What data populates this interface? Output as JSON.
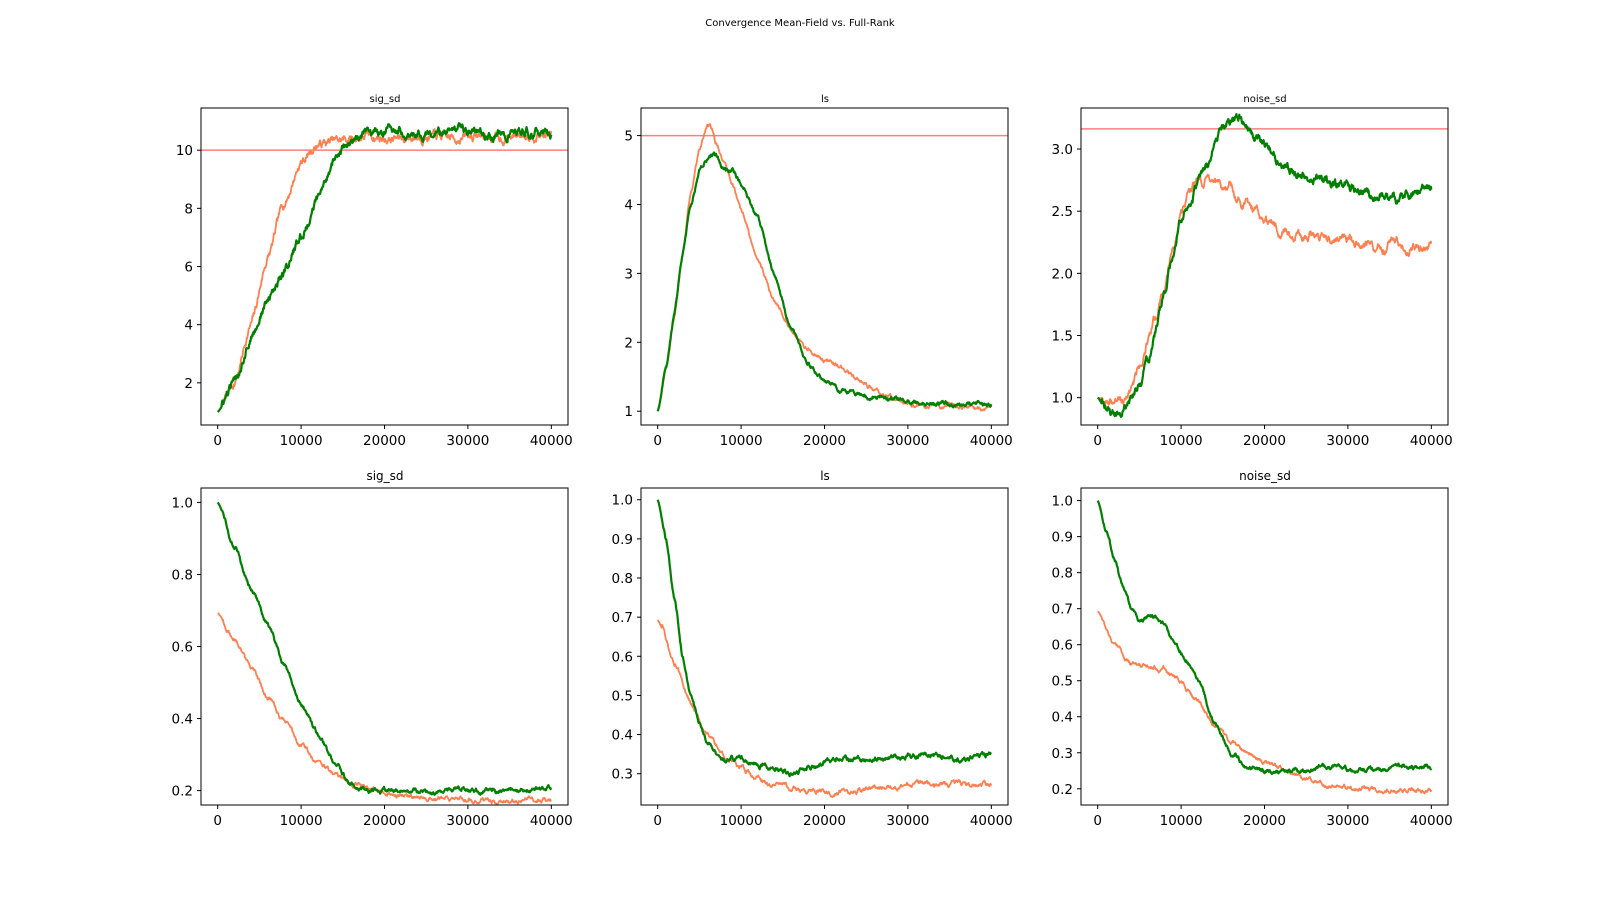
{
  "figure": {
    "title": "Convergence Mean-Field vs. Full-Rank"
  },
  "colors": {
    "mean_field": "#ff7f50",
    "full_rank": "#008000",
    "reference": "#ff7f7f"
  },
  "chart_data": [
    {
      "type": "line",
      "title": "sig_sd",
      "xlim": [
        -2000,
        42000
      ],
      "ylim": [
        0.55,
        11.45
      ],
      "xticks": [
        0,
        10000,
        20000,
        30000,
        40000
      ],
      "yticks": [
        2,
        4,
        6,
        8,
        10
      ],
      "xtick_labels": [
        "0",
        "10000",
        "20000",
        "30000",
        "40000"
      ],
      "ytick_labels": [
        "2",
        "4",
        "6",
        "8",
        "10"
      ],
      "reference_line": 10,
      "noise": 0.1,
      "series": [
        {
          "color": "#ff7f50",
          "x": [
            0,
            2000,
            4000,
            6000,
            8000,
            10000,
            12000,
            14000,
            16000,
            18000,
            20000,
            22000,
            25000,
            28000,
            31000,
            34000,
            37000,
            40000
          ],
          "y": [
            1.0,
            2.0,
            4.0,
            6.3,
            8.2,
            9.6,
            10.2,
            10.3,
            10.4,
            10.5,
            10.4,
            10.4,
            10.5,
            10.4,
            10.5,
            10.4,
            10.6,
            10.5
          ]
        },
        {
          "color": "#008000",
          "x": [
            0,
            2000,
            4000,
            6000,
            8000,
            10000,
            12000,
            14000,
            16000,
            18000,
            20000,
            22000,
            25000,
            28000,
            31000,
            34000,
            37000,
            40000
          ],
          "y": [
            1.0,
            2.0,
            3.6,
            4.8,
            5.9,
            7.0,
            8.3,
            9.7,
            10.3,
            10.5,
            10.7,
            10.7,
            10.6,
            10.6,
            10.6,
            10.5,
            10.6,
            10.6
          ]
        }
      ]
    },
    {
      "type": "line",
      "title": "ls",
      "xlim": [
        -2000,
        42000
      ],
      "ylim": [
        0.8,
        5.4
      ],
      "xticks": [
        0,
        10000,
        20000,
        30000,
        40000
      ],
      "yticks": [
        1,
        2,
        3,
        4,
        5
      ],
      "xtick_labels": [
        "0",
        "10000",
        "20000",
        "30000",
        "40000"
      ],
      "ytick_labels": [
        "1",
        "2",
        "3",
        "4",
        "5"
      ],
      "reference_line": 5,
      "noise": 0.02,
      "series": [
        {
          "color": "#ff7f50",
          "x": [
            0,
            1000,
            2000,
            3000,
            4000,
            5000,
            6000,
            6500,
            7000,
            8000,
            9000,
            10000,
            12000,
            14000,
            16000,
            18000,
            20000,
            22000,
            24000,
            27000,
            30000,
            33000,
            36000,
            40000
          ],
          "y": [
            1.0,
            1.6,
            2.4,
            3.3,
            4.2,
            4.8,
            5.15,
            5.1,
            4.9,
            4.6,
            4.3,
            3.9,
            3.2,
            2.6,
            2.2,
            1.9,
            1.75,
            1.65,
            1.45,
            1.25,
            1.12,
            1.08,
            1.07,
            1.05
          ]
        },
        {
          "color": "#008000",
          "x": [
            0,
            1000,
            2000,
            3000,
            4000,
            5000,
            6000,
            7000,
            8000,
            9000,
            10000,
            12000,
            14000,
            16000,
            18000,
            20000,
            22000,
            25000,
            28000,
            31000,
            34000,
            37000,
            40000
          ],
          "y": [
            1.0,
            1.6,
            2.4,
            3.3,
            4.0,
            4.5,
            4.65,
            4.7,
            4.5,
            4.5,
            4.3,
            3.8,
            3.0,
            2.2,
            1.7,
            1.45,
            1.3,
            1.2,
            1.17,
            1.12,
            1.1,
            1.1,
            1.1
          ]
        }
      ]
    },
    {
      "type": "line",
      "title": "noise_sd",
      "xlim": [
        -2000,
        42000
      ],
      "ylim": [
        0.78,
        3.33
      ],
      "xticks": [
        0,
        10000,
        20000,
        30000,
        40000
      ],
      "yticks": [
        1.0,
        1.5,
        2.0,
        2.5,
        3.0
      ],
      "xtick_labels": [
        "0",
        "10000",
        "20000",
        "30000",
        "40000"
      ],
      "ytick_labels": [
        "1.0",
        "1.5",
        "2.0",
        "2.5",
        "3.0"
      ],
      "reference_line": 3.162,
      "noise": 0.025,
      "series": [
        {
          "color": "#ff7f50",
          "x": [
            0,
            1000,
            2000,
            3000,
            4000,
            5000,
            6000,
            7000,
            8000,
            9000,
            10000,
            11000,
            12000,
            13000,
            14000,
            15000,
            16000,
            17000,
            18000,
            19000,
            20000,
            22000,
            24000,
            26000,
            28000,
            30000,
            32000,
            34000,
            35500,
            37000,
            38500,
            40000
          ],
          "y": [
            1.0,
            0.98,
            0.95,
            1.0,
            1.08,
            1.25,
            1.45,
            1.65,
            1.9,
            2.2,
            2.45,
            2.65,
            2.75,
            2.75,
            2.7,
            2.65,
            2.72,
            2.6,
            2.55,
            2.5,
            2.45,
            2.35,
            2.32,
            2.3,
            2.25,
            2.27,
            2.22,
            2.2,
            2.3,
            2.2,
            2.23,
            2.2
          ]
        },
        {
          "color": "#008000",
          "x": [
            0,
            1000,
            2000,
            3000,
            4000,
            5000,
            6000,
            7000,
            8000,
            9000,
            10000,
            11000,
            12000,
            13000,
            14000,
            15000,
            16000,
            17000,
            18000,
            19000,
            20000,
            21000,
            22000,
            24000,
            26000,
            28000,
            30000,
            32000,
            34000,
            36000,
            38000,
            40000
          ],
          "y": [
            1.0,
            0.9,
            0.87,
            0.9,
            0.98,
            1.1,
            1.3,
            1.55,
            1.85,
            2.15,
            2.45,
            2.55,
            2.7,
            2.85,
            3.05,
            3.15,
            3.2,
            3.25,
            3.15,
            3.1,
            3.05,
            2.98,
            2.9,
            2.8,
            2.75,
            2.72,
            2.7,
            2.65,
            2.62,
            2.6,
            2.65,
            2.68
          ]
        }
      ]
    },
    {
      "type": "line",
      "title": "sig_sd",
      "xlim": [
        -2000,
        42000
      ],
      "ylim": [
        0.16,
        1.04
      ],
      "xticks": [
        0,
        10000,
        20000,
        30000,
        40000
      ],
      "yticks": [
        0.2,
        0.4,
        0.6,
        0.8,
        1.0
      ],
      "xtick_labels": [
        "0",
        "10000",
        "20000",
        "30000",
        "40000"
      ],
      "ytick_labels": [
        "0.2",
        "0.4",
        "0.6",
        "0.8",
        "1.0"
      ],
      "reference_line": null,
      "noise": 0.004,
      "series": [
        {
          "color": "#ff7f50",
          "x": [
            0,
            2000,
            4000,
            6000,
            8000,
            10000,
            12000,
            14000,
            16000,
            18000,
            20000,
            22000,
            25000,
            28000,
            31000,
            34000,
            37000,
            40000
          ],
          "y": [
            0.693,
            0.62,
            0.54,
            0.46,
            0.39,
            0.33,
            0.28,
            0.245,
            0.22,
            0.205,
            0.195,
            0.187,
            0.18,
            0.176,
            0.175,
            0.173,
            0.174,
            0.173
          ]
        },
        {
          "color": "#008000",
          "x": [
            0,
            2000,
            4000,
            6000,
            8000,
            10000,
            12000,
            14000,
            16000,
            17000,
            18000,
            20000,
            22000,
            25000,
            28000,
            31000,
            34000,
            37000,
            40000
          ],
          "y": [
            1.0,
            0.88,
            0.76,
            0.66,
            0.55,
            0.44,
            0.36,
            0.28,
            0.22,
            0.205,
            0.2,
            0.2,
            0.205,
            0.195,
            0.2,
            0.2,
            0.198,
            0.2,
            0.205
          ]
        }
      ]
    },
    {
      "type": "line",
      "title": "ls",
      "xlim": [
        -2000,
        42000
      ],
      "ylim": [
        0.22,
        1.03
      ],
      "xticks": [
        0,
        10000,
        20000,
        30000,
        40000
      ],
      "yticks": [
        0.3,
        0.4,
        0.5,
        0.6,
        0.7,
        0.8,
        0.9,
        1.0
      ],
      "xtick_labels": [
        "0",
        "10000",
        "20000",
        "30000",
        "40000"
      ],
      "ytick_labels": [
        "0.3",
        "0.4",
        "0.5",
        "0.6",
        "0.7",
        "0.8",
        "0.9",
        "1.0"
      ],
      "reference_line": null,
      "noise": 0.004,
      "series": [
        {
          "color": "#ff7f50",
          "x": [
            0,
            2000,
            4000,
            6000,
            8000,
            10000,
            12000,
            14000,
            16000,
            18000,
            20000,
            22000,
            25000,
            28000,
            31000,
            34000,
            37000,
            40000
          ],
          "y": [
            0.693,
            0.58,
            0.48,
            0.4,
            0.345,
            0.315,
            0.29,
            0.272,
            0.262,
            0.257,
            0.255,
            0.254,
            0.26,
            0.27,
            0.275,
            0.273,
            0.272,
            0.274
          ]
        },
        {
          "color": "#008000",
          "x": [
            0,
            1000,
            2000,
            3000,
            4000,
            5000,
            6000,
            7000,
            8000,
            10000,
            12000,
            14000,
            16000,
            18000,
            20000,
            22000,
            25000,
            28000,
            31000,
            34000,
            37000,
            40000
          ],
          "y": [
            1.0,
            0.9,
            0.75,
            0.6,
            0.5,
            0.43,
            0.38,
            0.35,
            0.335,
            0.34,
            0.325,
            0.31,
            0.3,
            0.32,
            0.33,
            0.34,
            0.335,
            0.34,
            0.345,
            0.345,
            0.34,
            0.35
          ]
        }
      ]
    },
    {
      "type": "line",
      "title": "noise_sd",
      "xlim": [
        -2000,
        42000
      ],
      "ylim": [
        0.155,
        1.035
      ],
      "xticks": [
        0,
        10000,
        20000,
        30000,
        40000
      ],
      "yticks": [
        0.2,
        0.3,
        0.4,
        0.5,
        0.6,
        0.7,
        0.8,
        0.9,
        1.0
      ],
      "xtick_labels": [
        "0",
        "10000",
        "20000",
        "30000",
        "40000"
      ],
      "ytick_labels": [
        "0.2",
        "0.3",
        "0.4",
        "0.5",
        "0.6",
        "0.7",
        "0.8",
        "0.9",
        "1.0"
      ],
      "reference_line": null,
      "noise": 0.004,
      "series": [
        {
          "color": "#ff7f50",
          "x": [
            0,
            2000,
            4000,
            6000,
            8000,
            10000,
            12000,
            14000,
            16000,
            18000,
            20000,
            22000,
            25000,
            28000,
            31000,
            34000,
            37000,
            40000
          ],
          "y": [
            0.693,
            0.6,
            0.55,
            0.54,
            0.53,
            0.5,
            0.44,
            0.38,
            0.33,
            0.3,
            0.275,
            0.255,
            0.23,
            0.21,
            0.2,
            0.197,
            0.195,
            0.195
          ]
        },
        {
          "color": "#008000",
          "x": [
            0,
            1000,
            2000,
            3000,
            4000,
            5000,
            6000,
            7000,
            8000,
            9000,
            10000,
            12000,
            14000,
            16000,
            18000,
            20000,
            22000,
            25000,
            28000,
            31000,
            34000,
            37000,
            40000
          ],
          "y": [
            1.0,
            0.92,
            0.84,
            0.76,
            0.7,
            0.665,
            0.68,
            0.68,
            0.66,
            0.61,
            0.58,
            0.5,
            0.38,
            0.3,
            0.26,
            0.25,
            0.245,
            0.25,
            0.26,
            0.25,
            0.255,
            0.26,
            0.26
          ]
        }
      ]
    }
  ]
}
